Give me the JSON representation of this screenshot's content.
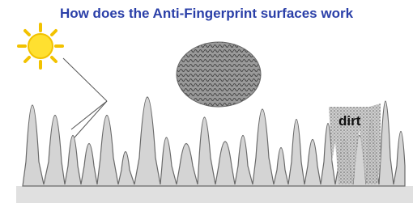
{
  "header": {
    "title": "How does the Anti-Fingerprint surfaces work"
  },
  "labels": {
    "dirt": "dirt"
  }
}
